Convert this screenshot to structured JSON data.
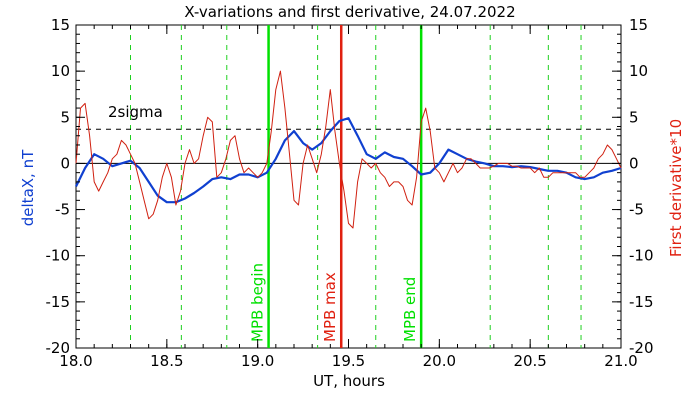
{
  "chart_data": {
    "type": "line",
    "title": "X-variations and first derivative, 24.07.2022",
    "xlabel": "UT, hours",
    "ylabel_left": "deltaX, nT",
    "ylabel_right": "First derivative*10",
    "xlim": [
      18.0,
      21.0
    ],
    "ylim": [
      -20,
      15
    ],
    "x_ticks": [
      "18.0",
      "18.5",
      "19.0",
      "19.5",
      "20.0",
      "20.5",
      "21.0"
    ],
    "y_ticks": [
      "15",
      "10",
      "5",
      "0",
      "-5",
      "-10",
      "-15",
      "-20"
    ],
    "grid": false,
    "sigma_level": {
      "label": "2sigma",
      "value": 3.7
    },
    "dashed_markers_x": [
      18.3,
      18.58,
      18.83,
      19.33,
      19.65,
      20.28,
      20.6,
      20.78
    ],
    "events": [
      {
        "label": "MPB begin",
        "x": 19.06,
        "color": "#00e000"
      },
      {
        "label": "MPB max",
        "x": 19.46,
        "color": "#e02010"
      },
      {
        "label": "MPB end",
        "x": 19.9,
        "color": "#00e000"
      }
    ],
    "series": [
      {
        "axis": "left",
        "color": "#1040d0",
        "x": [
          18.0,
          18.05,
          18.1,
          18.15,
          18.2,
          18.25,
          18.3,
          18.35,
          18.4,
          18.45,
          18.5,
          18.55,
          18.6,
          18.65,
          18.7,
          18.75,
          18.8,
          18.85,
          18.9,
          18.95,
          19.0,
          19.05,
          19.1,
          19.15,
          19.2,
          19.25,
          19.3,
          19.35,
          19.4,
          19.45,
          19.5,
          19.55,
          19.6,
          19.65,
          19.7,
          19.75,
          19.8,
          19.85,
          19.9,
          19.95,
          20.0,
          20.05,
          20.1,
          20.15,
          20.2,
          20.25,
          20.3,
          20.35,
          20.4,
          20.45,
          20.5,
          20.55,
          20.6,
          20.65,
          20.7,
          20.75,
          20.8,
          20.85,
          20.9,
          20.95,
          21.0
        ],
        "values": [
          -2.5,
          -0.5,
          1.0,
          0.5,
          -0.3,
          0.0,
          0.3,
          -0.5,
          -2.0,
          -3.5,
          -4.2,
          -4.2,
          -3.8,
          -3.2,
          -2.5,
          -1.7,
          -1.5,
          -1.7,
          -1.2,
          -1.2,
          -1.5,
          -1.0,
          0.5,
          2.5,
          3.5,
          2.2,
          1.5,
          2.2,
          3.5,
          4.6,
          4.9,
          3.0,
          1.0,
          0.5,
          1.2,
          0.7,
          0.5,
          -0.3,
          -1.2,
          -1.0,
          0.0,
          1.5,
          1.0,
          0.5,
          0.2,
          0.0,
          -0.3,
          -0.3,
          -0.4,
          -0.3,
          -0.4,
          -0.6,
          -0.8,
          -0.8,
          -1.0,
          -1.5,
          -1.7,
          -1.5,
          -1.0,
          -0.8,
          -0.5
        ]
      },
      {
        "axis": "right",
        "color": "#d02010",
        "x": [
          18.0,
          18.025,
          18.05,
          18.075,
          18.1,
          18.125,
          18.15,
          18.175,
          18.2,
          18.225,
          18.25,
          18.275,
          18.3,
          18.325,
          18.35,
          18.375,
          18.4,
          18.425,
          18.45,
          18.475,
          18.5,
          18.525,
          18.55,
          18.575,
          18.6,
          18.625,
          18.65,
          18.675,
          18.7,
          18.725,
          18.75,
          18.775,
          18.8,
          18.825,
          18.85,
          18.875,
          18.9,
          18.925,
          18.95,
          18.975,
          19.0,
          19.025,
          19.05,
          19.075,
          19.1,
          19.125,
          19.15,
          19.175,
          19.2,
          19.225,
          19.25,
          19.275,
          19.3,
          19.325,
          19.35,
          19.375,
          19.4,
          19.425,
          19.45,
          19.475,
          19.5,
          19.525,
          19.55,
          19.575,
          19.6,
          19.625,
          19.65,
          19.675,
          19.7,
          19.725,
          19.75,
          19.775,
          19.8,
          19.825,
          19.85,
          19.875,
          19.9,
          19.925,
          19.95,
          19.975,
          20.0,
          20.025,
          20.05,
          20.075,
          20.1,
          20.125,
          20.15,
          20.175,
          20.2,
          20.225,
          20.25,
          20.275,
          20.3,
          20.325,
          20.35,
          20.375,
          20.4,
          20.425,
          20.45,
          20.475,
          20.5,
          20.525,
          20.55,
          20.575,
          20.6,
          20.625,
          20.65,
          20.675,
          20.7,
          20.725,
          20.75,
          20.775,
          20.8,
          20.825,
          20.85,
          20.875,
          20.9,
          20.925,
          20.95,
          20.975,
          21.0
        ],
        "values": [
          0.0,
          6.0,
          6.5,
          3.0,
          -2.0,
          -3.0,
          -2.0,
          -1.0,
          0.5,
          1.0,
          2.5,
          2.0,
          1.0,
          0.0,
          -2.0,
          -4.0,
          -6.0,
          -5.5,
          -4.0,
          -1.5,
          0.0,
          -1.5,
          -4.5,
          -3.0,
          0.0,
          1.5,
          0.0,
          0.5,
          3.0,
          5.0,
          4.5,
          -1.5,
          -1.0,
          0.5,
          2.5,
          3.0,
          0.5,
          -1.0,
          -0.5,
          -1.0,
          -1.5,
          -1.0,
          0.0,
          3.5,
          8.0,
          10.0,
          6.0,
          1.0,
          -4.0,
          -4.5,
          0.0,
          2.0,
          0.5,
          -1.0,
          1.0,
          4.0,
          8.0,
          3.5,
          0.0,
          -3.0,
          -6.5,
          -7.0,
          -2.0,
          0.5,
          0.0,
          -0.5,
          0.0,
          -1.0,
          -1.5,
          -2.5,
          -2.0,
          -2.0,
          -2.5,
          -4.0,
          -4.5,
          -1.5,
          4.5,
          6.0,
          3.5,
          -0.5,
          -1.0,
          -2.0,
          -1.0,
          0.0,
          -1.0,
          -0.5,
          0.5,
          0.5,
          0.0,
          -0.5,
          -0.5,
          -0.5,
          -0.3,
          0.0,
          0.0,
          0.0,
          -0.3,
          -0.3,
          -0.5,
          -0.5,
          -0.5,
          -1.0,
          -0.5,
          -1.5,
          -1.5,
          -1.0,
          -1.0,
          -1.0,
          -1.0,
          -1.0,
          -1.0,
          -1.5,
          -1.5,
          -1.0,
          -0.5,
          0.5,
          1.0,
          2.0,
          1.5,
          0.5,
          -0.5
        ]
      }
    ]
  }
}
